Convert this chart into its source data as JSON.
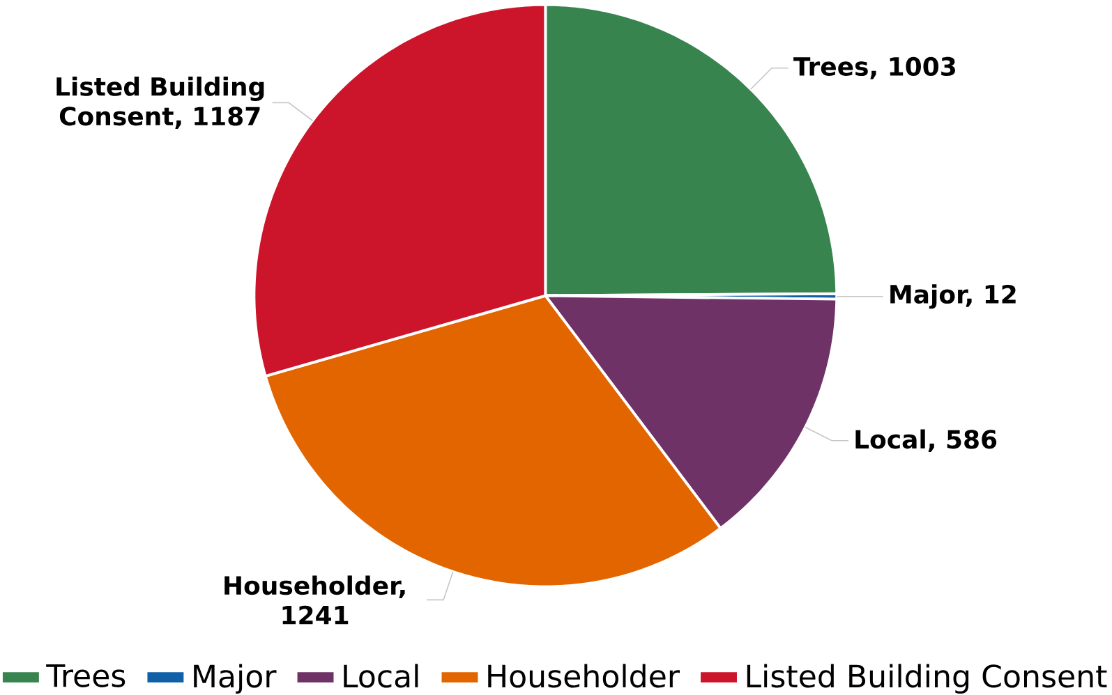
{
  "chart_data": {
    "type": "pie",
    "categories": [
      "Trees",
      "Major",
      "Local",
      "Householder",
      "Listed Building Consent"
    ],
    "values": [
      1003,
      12,
      586,
      1241,
      1187
    ],
    "value_labels": [
      "Trees, 1003",
      "Major, 12",
      "Local, 586",
      "Householder, 1241",
      "Listed Building Consent, 1187"
    ],
    "colors": [
      "#38844f",
      "#1060a8",
      "#6e3266",
      "#e36500",
      "#cc142b"
    ],
    "legend": "bottom"
  }
}
